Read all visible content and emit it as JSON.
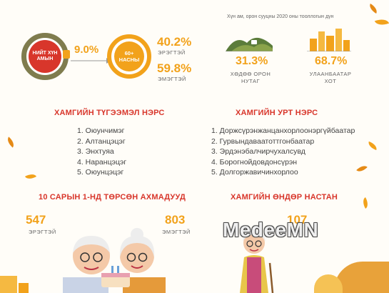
{
  "top_note": "Хүн ам, орон сууцны 2020 оны тооллогын дүн",
  "total": {
    "circle_label": "НИЙТ ХҮН АМЫН",
    "percent": "9.0%",
    "share": 0.09
  },
  "elderly": {
    "circle_label": "60+ НАСНЫ",
    "share_male": 0.402
  },
  "male": {
    "percent": "40.2%",
    "label": "ЭРЭГТЭЙ"
  },
  "female": {
    "percent": "59.8%",
    "label": "ЭМЭГТЭЙ"
  },
  "rural": {
    "percent": "31.3%",
    "label_line1": "ХӨДӨӨ ОРОН",
    "label_line2": "НУТАГ"
  },
  "urban": {
    "percent": "68.7%",
    "label_line1": "УЛААНБААТАР",
    "label_line2": "ХОТ"
  },
  "common_names": {
    "title": "ХАМГИЙН ТҮГЭЭМЭЛ НЭРС",
    "items": [
      "1. Оюунчимэг",
      "2. Алтанцэцэг",
      "3. Энхтуяа",
      "4. Наранцэцэг",
      "5. Оюунцэцэг"
    ]
  },
  "longest_names": {
    "title": "ХАМГИЙН УРТ НЭРС",
    "items": [
      "1. Доржсүрэнжанцанхорлоонэргүйбаатар",
      "2. Гурвындаваатоттгонбаатар",
      "3. Эрдэнэбалчирчухалсувд",
      "4. Борогнойдовдонсүрэн",
      "5. Долгоржавичинхорлоо"
    ]
  },
  "centenarians": {
    "title": "10 САРЫН 1-НД ТӨРСӨН АХМАДУУД",
    "male_count": "547",
    "male_label": "ЭРЭГТЭЙ",
    "female_count": "803",
    "female_label": "ЭМЭГТЭЙ"
  },
  "oldest": {
    "title": "ХАМГИЙН ӨНДӨР НАСТАН",
    "age": "107"
  },
  "watermark": "MedeeMN",
  "colors": {
    "accent": "#f2a21b",
    "title_red": "#d8362b",
    "ring_green": "#7f7c4e",
    "hill_green": "#5b7c3a"
  }
}
